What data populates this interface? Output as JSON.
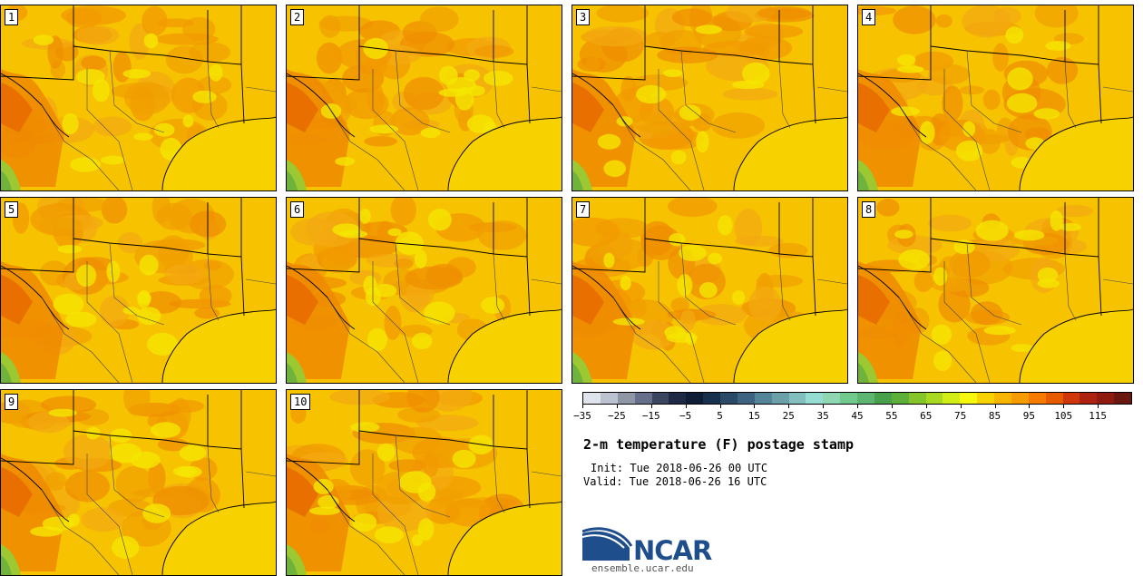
{
  "panels": [
    {
      "label": "1"
    },
    {
      "label": "2"
    },
    {
      "label": "3"
    },
    {
      "label": "4"
    },
    {
      "label": "5"
    },
    {
      "label": "6"
    },
    {
      "label": "7"
    },
    {
      "label": "8"
    },
    {
      "label": "9"
    },
    {
      "label": "10"
    }
  ],
  "colorbar": {
    "colors": [
      "#dfe3ec",
      "#bcc2cf",
      "#8f97a7",
      "#66708a",
      "#3a4560",
      "#1e2a45",
      "#0f1c35",
      "#16304e",
      "#2a4a68",
      "#3d6583",
      "#548497",
      "#6aa1a8",
      "#83bfbe",
      "#95ddd2",
      "#8ed7b2",
      "#72c98e",
      "#5db56f",
      "#48a04a",
      "#5cb03a",
      "#84c52b",
      "#a8d81f",
      "#d2ec16",
      "#f5f70f",
      "#f7d100",
      "#f7b500",
      "#f79c00",
      "#f77a00",
      "#e65a00",
      "#d0360c",
      "#ad2310",
      "#8e1a10",
      "#6b170f"
    ],
    "tick_labels": [
      "−35",
      "−25",
      "−15",
      "−5",
      "5",
      "15",
      "25",
      "35",
      "45",
      "55",
      "65",
      "75",
      "85",
      "95",
      "105",
      "115"
    ]
  },
  "title": "2-m temperature (F) postage stamp",
  "init": "Init: Tue 2018-06-26 00 UTC",
  "valid": "Valid: Tue 2018-06-26 16 UTC",
  "logo": {
    "text": "NCAR",
    "url": "ensemble.ucar.edu",
    "brand_color": "#1f4e8c"
  }
}
